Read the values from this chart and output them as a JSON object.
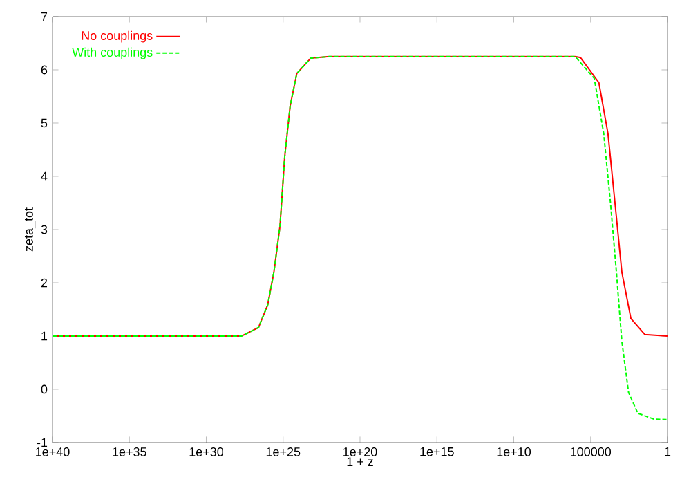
{
  "chart_data": {
    "type": "line",
    "xlabel": "1 + z",
    "ylabel": "zeta_tot",
    "log": "x",
    "xlim": [
      1e+40,
      1
    ],
    "ylim": [
      -1,
      7
    ],
    "xticks": [
      {
        "value": 1e+40,
        "label": "1e+40"
      },
      {
        "value": 1e+35,
        "label": "1e+35"
      },
      {
        "value": 1e+30,
        "label": "1e+30"
      },
      {
        "value": 1e+25,
        "label": "1e+25"
      },
      {
        "value": 1e+20,
        "label": "1e+20"
      },
      {
        "value": 1000000000000000.0,
        "label": "1e+15"
      },
      {
        "value": 10000000000.0,
        "label": "1e+10"
      },
      {
        "value": 100000,
        "label": "100000"
      },
      1
    ],
    "yticks": [
      -1,
      0,
      1,
      2,
      3,
      4,
      5,
      6,
      7
    ],
    "grid": false,
    "legend": "top left",
    "marker": "none",
    "series": [
      {
        "name": "No couplings",
        "color": "#ff0000",
        "line_style": "solid",
        "x": [
          1e+40,
          5e+27,
          4e+26,
          1e+26,
          4e+25,
          1.6e+25,
          7.9e+24,
          3.5e+24,
          1.3e+24,
          1.6e+23,
          1e+22,
          10000000000.0,
          1000000.0,
          450000.0,
          29000.0,
          7400,
          2600,
          930,
          240,
          30,
          1
        ],
        "values": [
          1,
          1,
          1.16,
          1.59,
          2.2,
          3.07,
          4.37,
          5.32,
          5.93,
          6.22,
          6.25,
          6.25,
          6.25,
          6.23,
          5.76,
          4.8,
          3.5,
          2.2,
          1.33,
          1.03,
          1
        ]
      },
      {
        "name": "With couplings",
        "color": "#00ff00",
        "line_style": "dashed",
        "x": [
          1e+40,
          5e+27,
          4e+26,
          1e+26,
          4e+25,
          1.6e+25,
          7.9e+24,
          3.5e+24,
          1.3e+24,
          1.6e+23,
          1e+22,
          10000000000.0,
          1000000.0,
          58000.0,
          14000.0,
          5100,
          2100,
          930,
          340,
          85,
          7.8,
          1
        ],
        "values": [
          1,
          1,
          1.16,
          1.59,
          2.2,
          3.07,
          4.37,
          5.32,
          5.93,
          6.22,
          6.25,
          6.25,
          6.25,
          5.84,
          4.8,
          3.5,
          2.2,
          0.9,
          -0.06,
          -0.45,
          -0.56,
          -0.57
        ]
      }
    ]
  }
}
